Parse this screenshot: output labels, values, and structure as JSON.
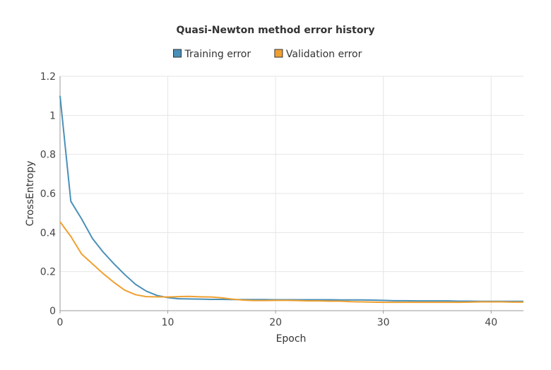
{
  "chart_data": {
    "type": "line",
    "title": "Quasi-Newton method error history",
    "xlabel": "Epoch",
    "ylabel": "CrossEntropy",
    "xlim": [
      0,
      43
    ],
    "ylim": [
      0,
      1.2
    ],
    "xticks": [
      0,
      10,
      20,
      30,
      40
    ],
    "yticks": [
      0,
      0.2,
      0.4,
      0.6,
      0.8,
      1,
      1.2
    ],
    "ytick_labels": [
      "0",
      "0.2",
      "0.4",
      "0.6",
      "0.8",
      "1",
      "1.2"
    ],
    "grid": true,
    "legend_position": "top-center",
    "series": [
      {
        "name": "Training error",
        "color": "#4a90b8",
        "x": [
          0,
          1,
          2,
          3,
          4,
          5,
          6,
          7,
          8,
          9,
          10,
          11,
          12,
          13,
          14,
          15,
          16,
          17,
          18,
          19,
          20,
          21,
          22,
          23,
          24,
          25,
          26,
          27,
          28,
          29,
          30,
          31,
          32,
          33,
          34,
          35,
          36,
          37,
          38,
          39,
          40,
          41,
          42,
          43
        ],
        "y": [
          1.1,
          0.56,
          0.47,
          0.37,
          0.3,
          0.24,
          0.185,
          0.135,
          0.1,
          0.078,
          0.067,
          0.061,
          0.06,
          0.059,
          0.058,
          0.058,
          0.057,
          0.057,
          0.057,
          0.057,
          0.056,
          0.056,
          0.056,
          0.056,
          0.056,
          0.056,
          0.055,
          0.055,
          0.055,
          0.054,
          0.053,
          0.051,
          0.051,
          0.05,
          0.05,
          0.05,
          0.05,
          0.049,
          0.049,
          0.048,
          0.048,
          0.048,
          0.048,
          0.048
        ]
      },
      {
        "name": "Validation error",
        "color": "#f0a030",
        "x": [
          0,
          1,
          2,
          3,
          4,
          5,
          6,
          7,
          8,
          9,
          10,
          11,
          12,
          13,
          14,
          15,
          16,
          17,
          18,
          19,
          20,
          21,
          22,
          23,
          24,
          25,
          26,
          27,
          28,
          29,
          30,
          31,
          32,
          33,
          34,
          35,
          36,
          37,
          38,
          39,
          40,
          41,
          42,
          43
        ],
        "y": [
          0.455,
          0.38,
          0.29,
          0.24,
          0.19,
          0.145,
          0.105,
          0.082,
          0.072,
          0.071,
          0.07,
          0.072,
          0.073,
          0.071,
          0.07,
          0.066,
          0.059,
          0.054,
          0.052,
          0.052,
          0.053,
          0.053,
          0.052,
          0.05,
          0.05,
          0.049,
          0.049,
          0.046,
          0.045,
          0.044,
          0.043,
          0.043,
          0.043,
          0.043,
          0.043,
          0.043,
          0.043,
          0.043,
          0.044,
          0.045,
          0.045,
          0.045,
          0.044,
          0.044
        ]
      }
    ]
  }
}
